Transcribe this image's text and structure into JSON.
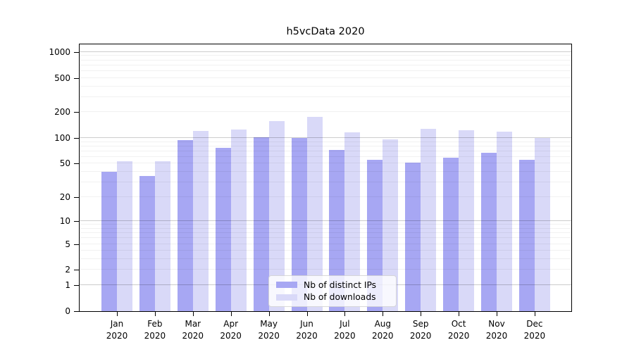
{
  "title": "h5vcData 2020",
  "chart_data": {
    "type": "bar",
    "title": "h5vcData 2020",
    "categories": [
      "Jan",
      "Feb",
      "Mar",
      "Apr",
      "May",
      "Jun",
      "Jul",
      "Aug",
      "Sep",
      "Oct",
      "Nov",
      "Dec"
    ],
    "x_year_suffix": "2020",
    "series": [
      {
        "name": "Nb of distinct IPs",
        "color": "#a7a7f3",
        "values": [
          40,
          36,
          95,
          77,
          102,
          101,
          72,
          56,
          51,
          59,
          67,
          55
        ]
      },
      {
        "name": "Nb of downloads",
        "color": "#d9d9f8",
        "values": [
          53,
          53,
          120,
          126,
          157,
          175,
          117,
          96,
          129,
          124,
          118,
          101
        ]
      }
    ],
    "y_axis": {
      "scale": "symlog",
      "tick_values": [
        0,
        1,
        2,
        5,
        10,
        20,
        50,
        100,
        200,
        500,
        1000
      ],
      "tick_labels": [
        "0",
        "1",
        "2",
        "5",
        "10",
        "20",
        "50",
        "100",
        "200",
        "500",
        "1000"
      ]
    },
    "grid": "on",
    "legend_position": "bottom-center-inside"
  }
}
